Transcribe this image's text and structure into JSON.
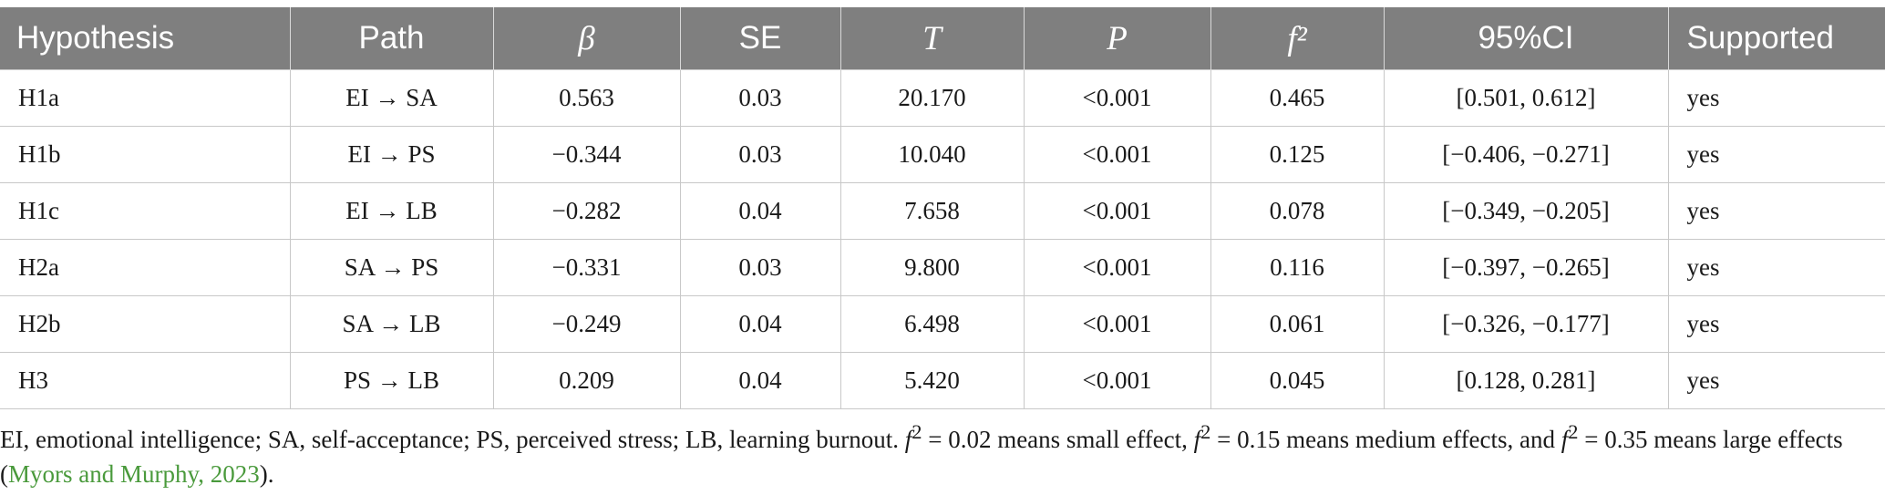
{
  "table": {
    "headers": [
      "Hypothesis",
      "Path",
      "β",
      "SE",
      "T",
      "P",
      "f²",
      "95%CI",
      "Supported"
    ],
    "rows": [
      [
        "H1a",
        "EI → SA",
        "0.563",
        "0.03",
        "20.170",
        "<0.001",
        "0.465",
        "[0.501, 0.612]",
        "yes"
      ],
      [
        "H1b",
        "EI → PS",
        "−0.344",
        "0.03",
        "10.040",
        "<0.001",
        "0.125",
        "[−0.406, −0.271]",
        "yes"
      ],
      [
        "H1c",
        "EI → LB",
        "−0.282",
        "0.04",
        "7.658",
        "<0.001",
        "0.078",
        "[−0.349, −0.205]",
        "yes"
      ],
      [
        "H2a",
        "SA → PS",
        "−0.331",
        "0.03",
        "9.800",
        "<0.001",
        "0.116",
        "[−0.397, −0.265]",
        "yes"
      ],
      [
        "H2b",
        "SA → LB",
        "−0.249",
        "0.04",
        "6.498",
        "<0.001",
        "0.061",
        "[−0.326, −0.177]",
        "yes"
      ],
      [
        "H3",
        "PS → LB",
        "0.209",
        "0.04",
        "5.420",
        "<0.001",
        "0.045",
        "[0.128, 0.281]",
        "yes"
      ]
    ]
  },
  "footnote": {
    "abbrev": "EI, emotional intelligence; SA, self-acceptance; PS, perceived stress; LB, learning burnout. ",
    "f_symbol": "f",
    "f_sup": "2",
    "small": " = 0.02 means small effect, ",
    "medium": " = 0.15 means medium effects, and ",
    "large": " = 0.35 means large effects (",
    "citation": "Myors and Murphy, 2023",
    "end": ")."
  }
}
